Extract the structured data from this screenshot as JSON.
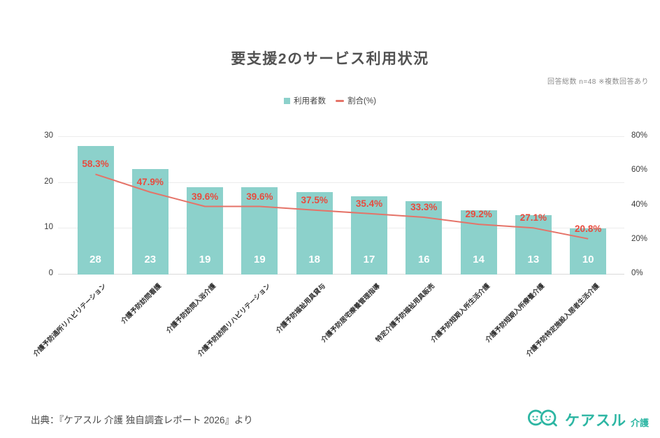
{
  "header": {
    "title": "要支援2のサービス利用状況",
    "note": "回答総数 n=48 ※複数回答あり"
  },
  "legend": {
    "bar_label": "利用者数",
    "line_label": "割合(%)"
  },
  "colors": {
    "bar": "#8cd1cb",
    "line": "#e57368",
    "pct": "#e84b3e",
    "title": "#525252",
    "grid": "#ececec",
    "baseline": "#d9d9d9",
    "axis": "#3a3a3a",
    "muted": "#8a8a8a",
    "logo": "#2db6a3"
  },
  "chart_data": {
    "type": "bar+line",
    "title": "要支援2のサービス利用状況",
    "categories": [
      "介護予防通所リハビリテーション",
      "介護予防訪問看護",
      "介護予防訪問入浴介護",
      "介護予防訪問リハビリテーション",
      "介護予防福祉用具貸与",
      "介護予防居宅療養管理指導",
      "特定介護予防福祉用具販売",
      "介護予防短期入所生活介護",
      "介護予防短期入所療養介護",
      "介護予防特定施設入居者生活介護"
    ],
    "series": [
      {
        "name": "利用者数",
        "type": "bar",
        "axis": "left",
        "values": [
          28,
          23,
          19,
          19,
          18,
          17,
          16,
          14,
          13,
          10
        ]
      },
      {
        "name": "割合(%)",
        "type": "line",
        "axis": "right",
        "values": [
          58.3,
          47.9,
          39.6,
          39.6,
          37.5,
          35.4,
          33.3,
          29.2,
          27.1,
          20.8
        ]
      }
    ],
    "value_labels": [
      "28",
      "23",
      "19",
      "19",
      "18",
      "17",
      "16",
      "14",
      "13",
      "10"
    ],
    "pct_labels": [
      "58.3%",
      "47.9%",
      "39.6%",
      "39.6%",
      "37.5%",
      "35.4%",
      "33.3%",
      "29.2%",
      "27.1%",
      "20.8%"
    ],
    "left_axis": {
      "min": 0,
      "max": 30,
      "ticks": [
        "0",
        "10",
        "20",
        "30"
      ]
    },
    "right_axis": {
      "min": 0,
      "max": 80,
      "ticks": [
        "0%",
        "20%",
        "40%",
        "60%",
        "80%"
      ]
    },
    "grid": true,
    "legend_position": "top"
  },
  "footer": {
    "source": "出典：『ケアスル 介護 独自調査レポート 2026』より",
    "logo_text": "ケアスル",
    "logo_suffix": "介護"
  }
}
